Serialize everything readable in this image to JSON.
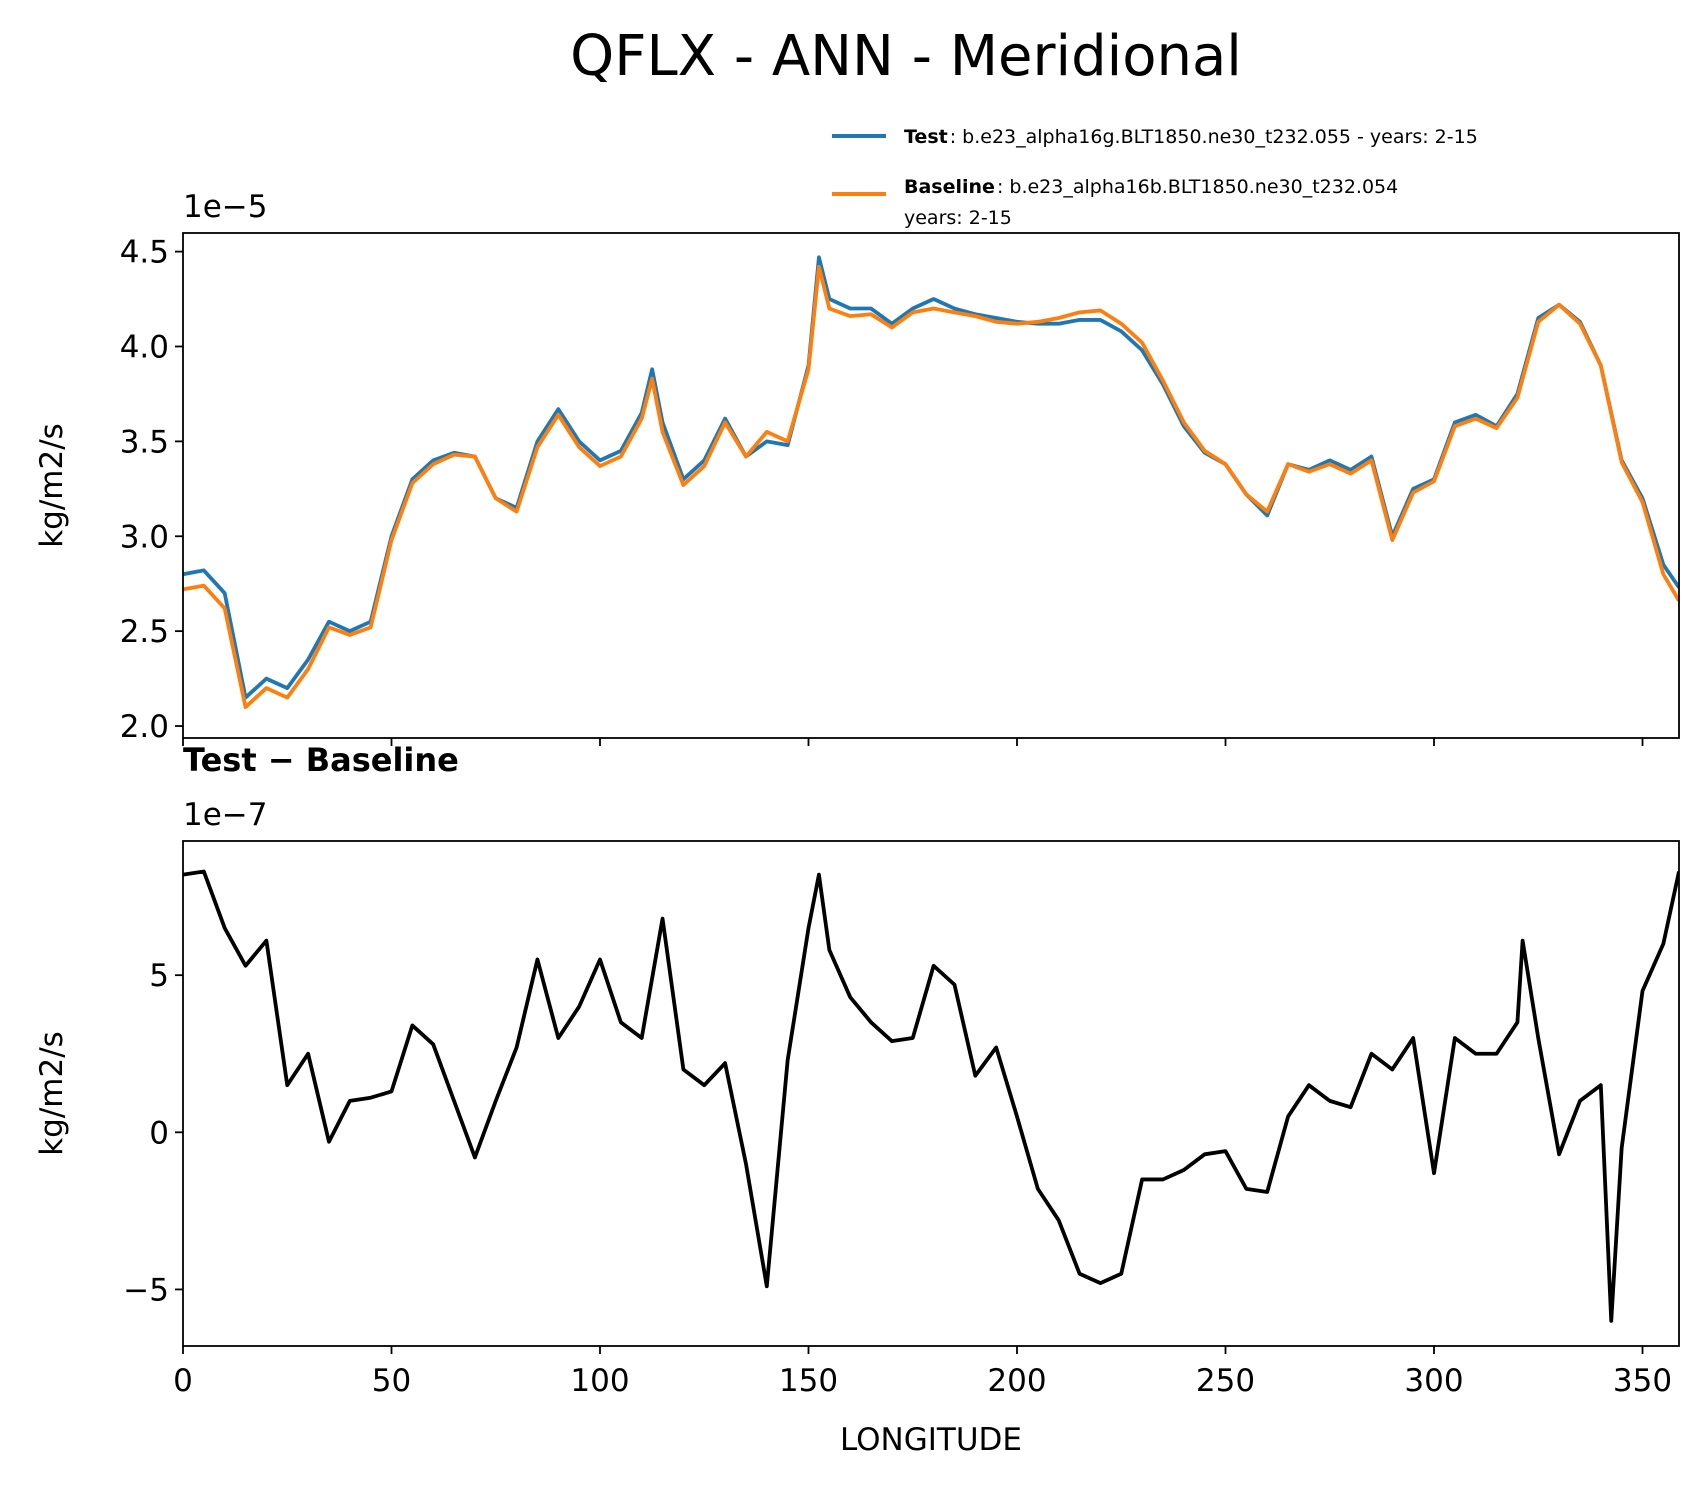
{
  "title": "QFLX - ANN - Meridional",
  "chart_data": [
    {
      "type": "line",
      "y_offset_label": "1e−5",
      "ylabel": "kg/m2/s",
      "legend": "upper right",
      "x": [
        0,
        5,
        10,
        15,
        20,
        25,
        30,
        35,
        40,
        45,
        50,
        55,
        60,
        65,
        70,
        75,
        80,
        85,
        90,
        95,
        100,
        105,
        110,
        112.5,
        115,
        120,
        125,
        130,
        135,
        140,
        145,
        150,
        152.5,
        155,
        160,
        165,
        170,
        175,
        180,
        185,
        190,
        195,
        200,
        205,
        210,
        215,
        220,
        225,
        230,
        235,
        240,
        245,
        250,
        255,
        260,
        265,
        270,
        275,
        280,
        285,
        290,
        295,
        300,
        305,
        310,
        315,
        320,
        325,
        330,
        335,
        340,
        345,
        350,
        355,
        358.75
      ],
      "series": [
        {
          "name": "Test",
          "legend_text": [
            ": b.e23_alpha16g.BLT1850.ne30_t232.055 - years: 2-15"
          ],
          "color": "#1f77b4",
          "values": [
            2.8,
            2.82,
            2.7,
            2.15,
            2.25,
            2.2,
            2.35,
            2.55,
            2.5,
            2.55,
            3.0,
            3.3,
            3.4,
            3.44,
            3.42,
            3.2,
            3.15,
            3.5,
            3.67,
            3.5,
            3.4,
            3.45,
            3.65,
            3.88,
            3.6,
            3.3,
            3.4,
            3.62,
            3.42,
            3.5,
            3.48,
            3.9,
            4.47,
            4.25,
            4.2,
            4.2,
            4.12,
            4.2,
            4.25,
            4.2,
            4.17,
            4.15,
            4.13,
            4.12,
            4.12,
            4.14,
            4.14,
            4.08,
            3.98,
            3.8,
            3.58,
            3.44,
            3.38,
            3.22,
            3.11,
            3.38,
            3.35,
            3.4,
            3.35,
            3.42,
            3.0,
            3.25,
            3.3,
            3.6,
            3.64,
            3.58,
            3.75,
            4.15,
            4.22,
            4.13,
            3.9,
            3.4,
            3.2,
            2.85,
            2.73
          ]
        },
        {
          "name": "Baseline",
          "legend_text": [
            ": b.e23_alpha16b.BLT1850.ne30_t232.054",
            "years: 2-15"
          ],
          "color": "#ff7f0e",
          "values": [
            2.72,
            2.74,
            2.62,
            2.1,
            2.2,
            2.15,
            2.3,
            2.52,
            2.48,
            2.52,
            2.98,
            3.28,
            3.38,
            3.43,
            3.42,
            3.2,
            3.13,
            3.47,
            3.64,
            3.47,
            3.37,
            3.42,
            3.62,
            3.83,
            3.55,
            3.27,
            3.37,
            3.6,
            3.42,
            3.55,
            3.5,
            3.88,
            4.42,
            4.2,
            4.16,
            4.17,
            4.1,
            4.18,
            4.2,
            4.18,
            4.16,
            4.13,
            4.12,
            4.13,
            4.15,
            4.18,
            4.19,
            4.12,
            4.02,
            3.82,
            3.6,
            3.45,
            3.38,
            3.22,
            3.13,
            3.38,
            3.34,
            3.38,
            3.33,
            3.4,
            2.98,
            3.23,
            3.29,
            3.58,
            3.62,
            3.57,
            3.73,
            4.13,
            4.22,
            4.12,
            3.9,
            3.39,
            3.18,
            2.8,
            2.66
          ]
        }
      ],
      "xlim": [
        0,
        358.75
      ],
      "xticks": [
        0,
        50,
        100,
        150,
        200,
        250,
        300,
        350
      ],
      "ylim": [
        1.937,
        4.598
      ],
      "yticks": [
        {
          "value": 2,
          "label": "2.0"
        },
        2.5,
        {
          "value": 3,
          "label": "3.0"
        },
        3.5,
        {
          "value": 4,
          "label": "4.0"
        },
        4.5
      ],
      "grid": false
    },
    {
      "type": "line",
      "title": "Test − Baseline",
      "y_offset_label": "1e−7",
      "ylabel": "kg/m2/s",
      "xlabel": "LONGITUDE",
      "color": "#000000",
      "x": [
        0,
        5,
        10,
        15,
        20,
        25,
        30,
        35,
        40,
        45,
        50,
        55,
        60,
        65,
        70,
        75,
        80,
        85,
        90,
        95,
        100,
        105,
        110,
        115,
        120,
        125,
        130,
        135,
        140,
        145,
        150,
        152.5,
        155,
        160,
        165,
        170,
        175,
        180,
        185,
        190,
        195,
        200,
        205,
        210,
        215,
        220,
        225,
        230,
        235,
        240,
        245,
        250,
        255,
        260,
        265,
        270,
        275,
        280,
        285,
        290,
        295,
        300,
        305,
        310,
        315,
        320,
        321.25,
        325,
        330,
        335,
        340,
        342.5,
        345,
        350,
        355,
        358.75
      ],
      "values": [
        8.2,
        8.3,
        6.5,
        5.3,
        6.1,
        1.5,
        2.5,
        -0.3,
        1.0,
        1.1,
        1.3,
        3.4,
        2.8,
        1.0,
        -0.8,
        1.0,
        2.7,
        5.5,
        3.0,
        4.0,
        5.5,
        3.5,
        3.0,
        6.8,
        2.0,
        1.5,
        2.2,
        -1.0,
        -4.9,
        2.3,
        6.5,
        8.2,
        5.8,
        4.3,
        3.5,
        2.9,
        3.0,
        5.3,
        4.7,
        1.8,
        2.7,
        0.5,
        -1.8,
        -2.8,
        -4.5,
        -4.8,
        -4.5,
        -1.5,
        -1.5,
        -1.2,
        -0.7,
        -0.6,
        -1.8,
        -1.9,
        0.5,
        1.5,
        1.0,
        0.8,
        2.5,
        2.0,
        3.0,
        -1.3,
        3.0,
        2.5,
        2.5,
        3.5,
        6.1,
        3.0,
        -0.7,
        1.0,
        1.5,
        -6.0,
        -0.5,
        4.5,
        6.0,
        8.3
      ],
      "xlim": [
        0,
        358.75
      ],
      "xticks": [
        0,
        50,
        100,
        150,
        200,
        250,
        300,
        350
      ],
      "ylim": [
        -6.8,
        9.27
      ],
      "yticks": [
        {
          "value": -5,
          "label": "−5"
        },
        0,
        5
      ],
      "grid": false
    }
  ]
}
